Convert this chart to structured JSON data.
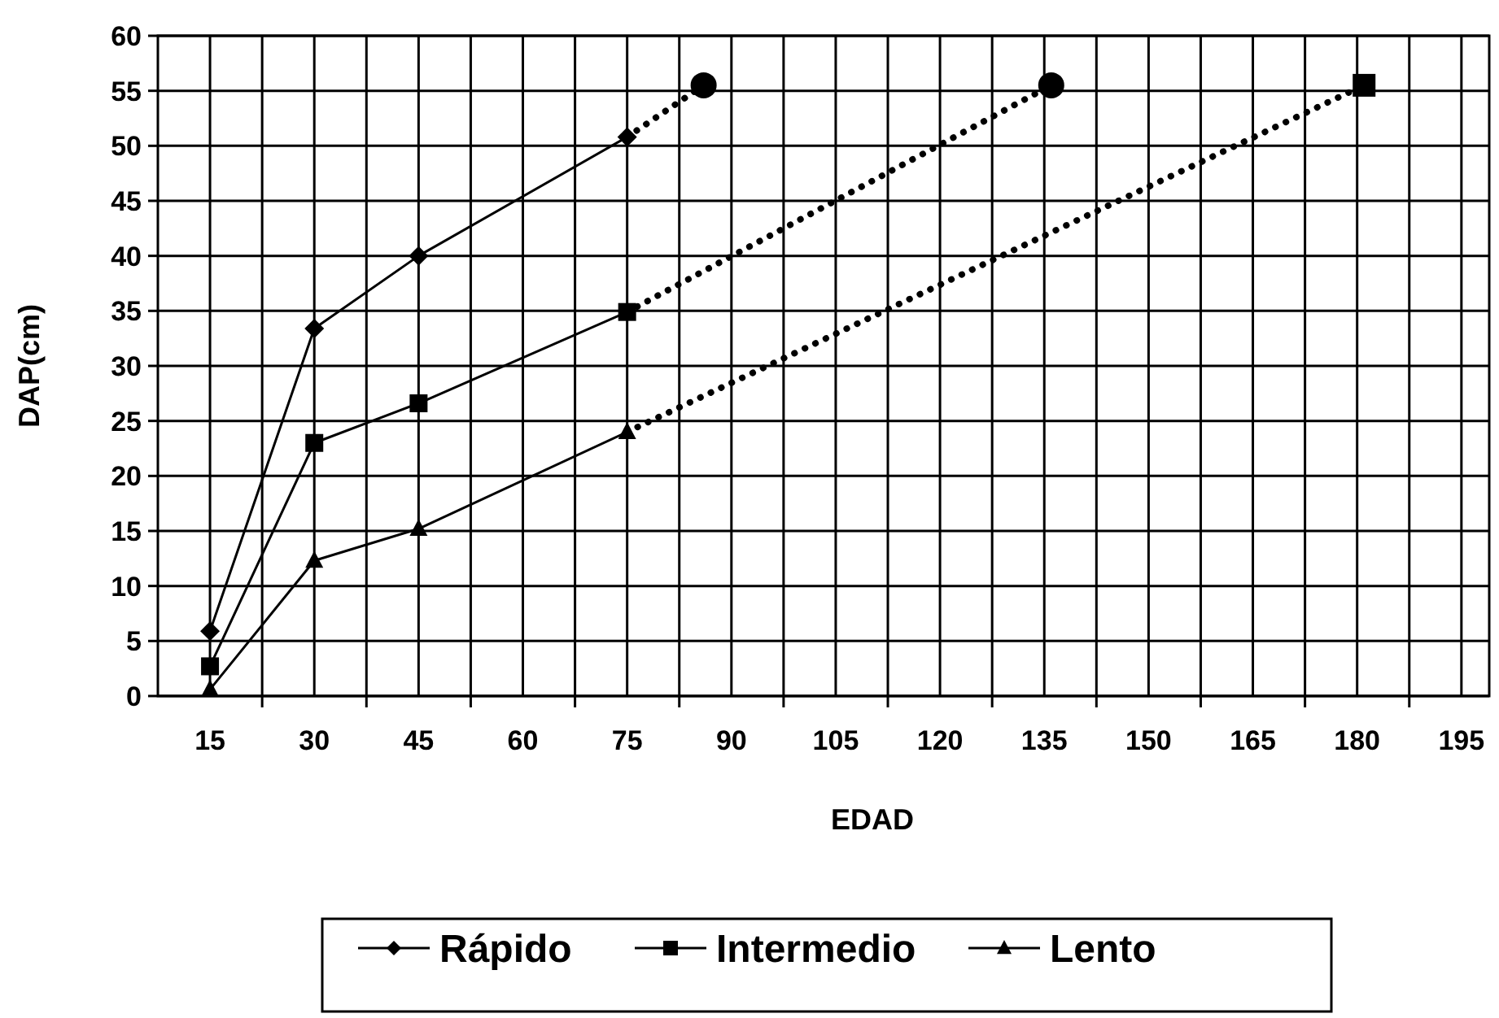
{
  "chart_data": {
    "type": "line",
    "xlabel": "EDAD",
    "ylabel": "DAP(cm)",
    "xlim": [
      7.5,
      199
    ],
    "ylim": [
      0,
      60
    ],
    "xticks": [
      {
        "value": 15,
        "label": "15"
      },
      {
        "value": 22.5,
        "label": null
      },
      {
        "value": 30,
        "label": "30"
      },
      {
        "value": 37.5,
        "label": null
      },
      {
        "value": 45,
        "label": "45"
      },
      {
        "value": 52.5,
        "label": null
      },
      {
        "value": 60,
        "label": "60"
      },
      {
        "value": 67.5,
        "label": null
      },
      {
        "value": 75,
        "label": "75"
      },
      {
        "value": 82.5,
        "label": null
      },
      {
        "value": 90,
        "label": "90"
      },
      {
        "value": 97.5,
        "label": null
      },
      {
        "value": 105,
        "label": "105"
      },
      {
        "value": 112.5,
        "label": null
      },
      {
        "value": 120,
        "label": "120"
      },
      {
        "value": 127.5,
        "label": null
      },
      {
        "value": 135,
        "label": "135"
      },
      {
        "value": 142.5,
        "label": null
      },
      {
        "value": 150,
        "label": "150"
      },
      {
        "value": 157.5,
        "label": null
      },
      {
        "value": 165,
        "label": "165"
      },
      {
        "value": 172.5,
        "label": null
      },
      {
        "value": 180,
        "label": "180"
      },
      {
        "value": 187.5,
        "label": null
      },
      {
        "value": 195,
        "label": "195"
      }
    ],
    "yticks": [
      0,
      5,
      10,
      15,
      20,
      25,
      30,
      35,
      40,
      45,
      50,
      55,
      60
    ],
    "grid": true,
    "legend": "bottom",
    "series": [
      {
        "name": "Rápido",
        "color": "#000000",
        "marker": "diamond",
        "line_style": "solid",
        "x": [
          15,
          30,
          45,
          75
        ],
        "values": [
          5.9,
          33.4,
          40,
          50.8
        ]
      },
      {
        "name": "Intermedio",
        "color": "#000000",
        "marker": "square",
        "line_style": "solid",
        "x": [
          15,
          30,
          45,
          75
        ],
        "values": [
          2.7,
          23,
          26.6,
          34.9
        ]
      },
      {
        "name": "Lento",
        "color": "#000000",
        "marker": "triangle",
        "line_style": "solid",
        "x": [
          15,
          30,
          45,
          75
        ],
        "values": [
          0.6,
          12.3,
          15.2,
          24
        ]
      },
      {
        "color": "#000000",
        "marker": "none",
        "line_style": "dotted",
        "x": [
          75,
          86
        ],
        "values": [
          50.8,
          55.5
        ]
      },
      {
        "color": "#000000",
        "marker": "none",
        "line_style": "dotted",
        "x": [
          75,
          136
        ],
        "values": [
          34.9,
          55.5
        ]
      },
      {
        "color": "#000000",
        "marker": "none",
        "line_style": "dotted",
        "x": [
          75,
          181
        ],
        "values": [
          24,
          55.5
        ]
      },
      {
        "type": "scatter",
        "color": "#000000",
        "marker": "circle",
        "x": [
          86,
          136
        ],
        "values": [
          55.5,
          55.5
        ]
      },
      {
        "type": "scatter",
        "color": "#000000",
        "marker": "square",
        "x": [
          181
        ],
        "values": [
          55.5
        ]
      }
    ]
  }
}
